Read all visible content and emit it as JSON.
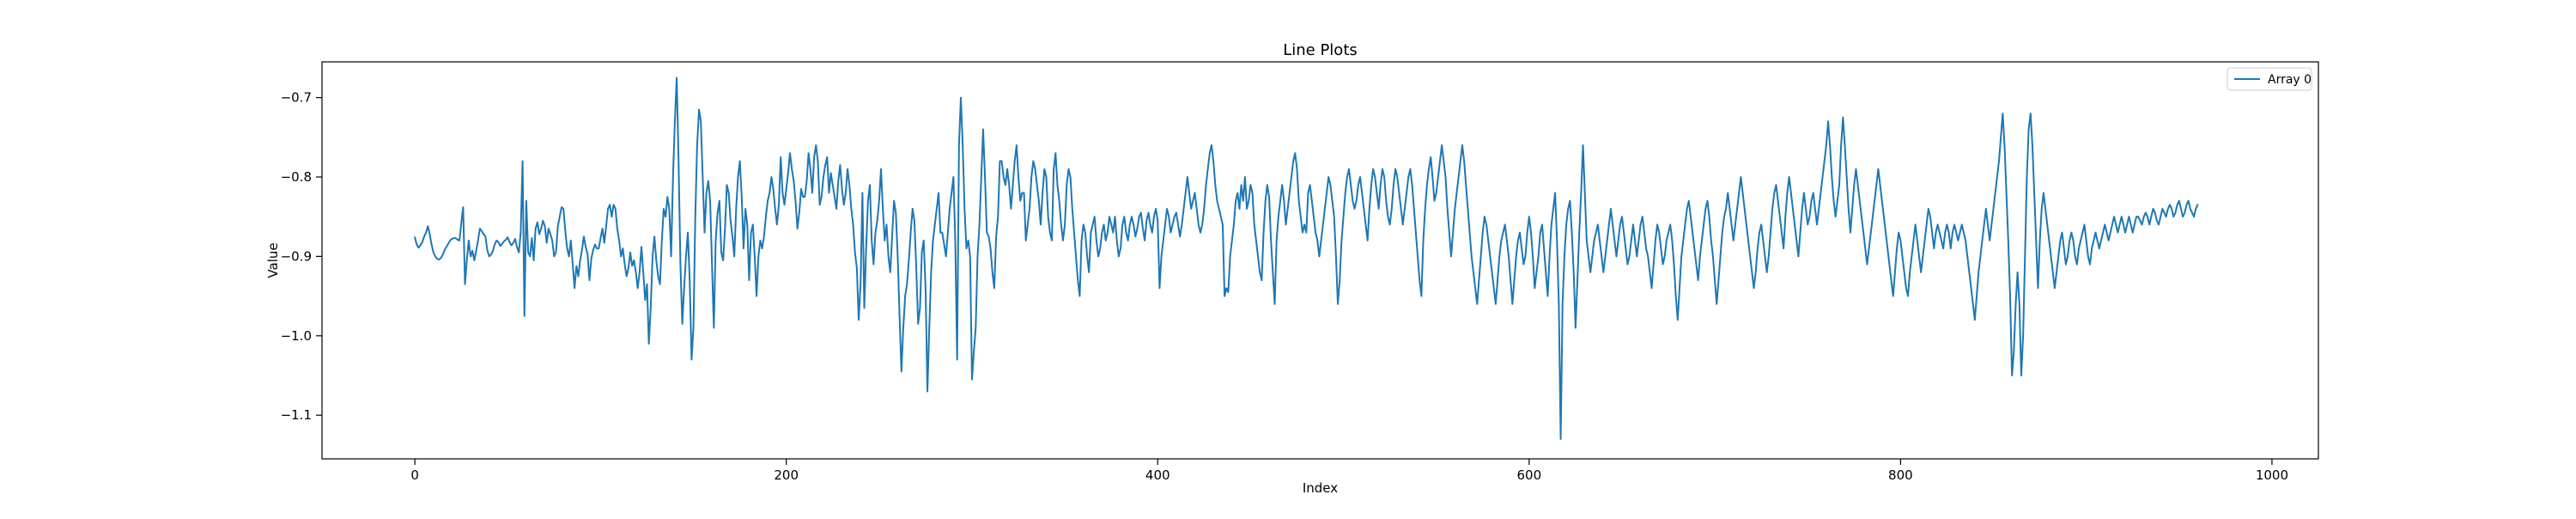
{
  "chart_data": {
    "type": "line",
    "title": "Line Plots",
    "xlabel": "Index",
    "ylabel": "Value",
    "xlim": [
      -50,
      1025
    ],
    "ylim": [
      -1.155,
      -0.655
    ],
    "x_ticks": [
      0,
      200,
      400,
      600,
      800,
      1000
    ],
    "x_tick_labels": [
      "0",
      "200",
      "400",
      "600",
      "800",
      "1000"
    ],
    "y_ticks": [
      -1.1,
      -1.0,
      -0.9,
      -0.8,
      -0.7
    ],
    "y_tick_labels": [
      "−1.1",
      "−1.0",
      "−0.9",
      "−0.8",
      "−0.7"
    ],
    "grid": false,
    "legend_position": "top-right",
    "series_color": "#1f77b4",
    "series": [
      {
        "name": "Array 0",
        "x_start": 0,
        "x_step": 1,
        "values": [
          -0.876,
          -0.885,
          -0.889,
          -0.886,
          -0.882,
          -0.875,
          -0.87,
          -0.862,
          -0.872,
          -0.885,
          -0.895,
          -0.9,
          -0.903,
          -0.904,
          -0.902,
          -0.898,
          -0.892,
          -0.888,
          -0.884,
          -0.88,
          -0.878,
          -0.877,
          -0.877,
          -0.879,
          -0.88,
          -0.858,
          -0.838,
          -0.935,
          -0.905,
          -0.88,
          -0.9,
          -0.893,
          -0.905,
          -0.893,
          -0.88,
          -0.865,
          -0.868,
          -0.872,
          -0.875,
          -0.892,
          -0.9,
          -0.898,
          -0.893,
          -0.885,
          -0.88,
          -0.882,
          -0.887,
          -0.884,
          -0.881,
          -0.879,
          -0.876,
          -0.882,
          -0.886,
          -0.883,
          -0.878,
          -0.888,
          -0.895,
          -0.87,
          -0.78,
          -0.975,
          -0.83,
          -0.895,
          -0.9,
          -0.877,
          -0.905,
          -0.865,
          -0.857,
          -0.872,
          -0.865,
          -0.855,
          -0.862,
          -0.883,
          -0.865,
          -0.872,
          -0.88,
          -0.9,
          -0.895,
          -0.862,
          -0.85,
          -0.838,
          -0.84,
          -0.868,
          -0.89,
          -0.9,
          -0.88,
          -0.91,
          -0.94,
          -0.912,
          -0.925,
          -0.905,
          -0.892,
          -0.875,
          -0.888,
          -0.897,
          -0.93,
          -0.903,
          -0.892,
          -0.885,
          -0.89,
          -0.89,
          -0.877,
          -0.865,
          -0.883,
          -0.862,
          -0.84,
          -0.835,
          -0.85,
          -0.835,
          -0.84,
          -0.865,
          -0.88,
          -0.9,
          -0.89,
          -0.91,
          -0.925,
          -0.915,
          -0.895,
          -0.912,
          -0.905,
          -0.92,
          -0.94,
          -0.92,
          -0.888,
          -0.92,
          -0.955,
          -0.935,
          -1.01,
          -0.965,
          -0.9,
          -0.875,
          -0.905,
          -0.925,
          -0.935,
          -0.88,
          -0.84,
          -0.85,
          -0.825,
          -0.84,
          -0.9,
          -0.8,
          -0.73,
          -0.675,
          -0.78,
          -0.91,
          -0.985,
          -0.94,
          -0.9,
          -0.87,
          -0.93,
          -1.03,
          -0.99,
          -0.85,
          -0.76,
          -0.715,
          -0.73,
          -0.8,
          -0.87,
          -0.82,
          -0.805,
          -0.83,
          -0.91,
          -0.99,
          -0.88,
          -0.845,
          -0.83,
          -0.895,
          -0.905,
          -0.865,
          -0.81,
          -0.82,
          -0.855,
          -0.875,
          -0.9,
          -0.84,
          -0.8,
          -0.78,
          -0.825,
          -0.89,
          -0.84,
          -0.86,
          -0.93,
          -0.87,
          -0.86,
          -0.9,
          -0.95,
          -0.9,
          -0.88,
          -0.89,
          -0.875,
          -0.85,
          -0.83,
          -0.82,
          -0.8,
          -0.815,
          -0.84,
          -0.86,
          -0.835,
          -0.775,
          -0.82,
          -0.835,
          -0.815,
          -0.795,
          -0.77,
          -0.79,
          -0.805,
          -0.83,
          -0.865,
          -0.845,
          -0.815,
          -0.825,
          -0.825,
          -0.805,
          -0.77,
          -0.79,
          -0.82,
          -0.775,
          -0.76,
          -0.78,
          -0.835,
          -0.825,
          -0.8,
          -0.785,
          -0.775,
          -0.82,
          -0.795,
          -0.81,
          -0.825,
          -0.84,
          -0.805,
          -0.785,
          -0.815,
          -0.835,
          -0.82,
          -0.79,
          -0.81,
          -0.84,
          -0.86,
          -0.895,
          -0.915,
          -0.98,
          -0.935,
          -0.82,
          -0.965,
          -0.89,
          -0.83,
          -0.81,
          -0.88,
          -0.91,
          -0.87,
          -0.855,
          -0.83,
          -0.79,
          -0.84,
          -0.88,
          -0.86,
          -0.9,
          -0.92,
          -0.875,
          -0.83,
          -0.845,
          -0.9,
          -0.975,
          -1.045,
          -0.99,
          -0.95,
          -0.935,
          -0.905,
          -0.87,
          -0.84,
          -0.855,
          -0.915,
          -0.985,
          -0.965,
          -0.895,
          -0.88,
          -0.94,
          -1.07,
          -0.99,
          -0.92,
          -0.88,
          -0.86,
          -0.84,
          -0.82,
          -0.87,
          -0.87,
          -0.885,
          -0.9,
          -0.87,
          -0.84,
          -0.82,
          -0.8,
          -0.88,
          -1.03,
          -0.76,
          -0.7,
          -0.76,
          -0.84,
          -0.89,
          -0.88,
          -0.9,
          -1.055,
          -1.02,
          -0.99,
          -0.9,
          -0.86,
          -0.8,
          -0.74,
          -0.8,
          -0.87,
          -0.875,
          -0.89,
          -0.92,
          -0.94,
          -0.875,
          -0.85,
          -0.78,
          -0.78,
          -0.8,
          -0.81,
          -0.79,
          -0.81,
          -0.84,
          -0.81,
          -0.78,
          -0.76,
          -0.8,
          -0.83,
          -0.82,
          -0.82,
          -0.88,
          -0.86,
          -0.84,
          -0.8,
          -0.78,
          -0.79,
          -0.81,
          -0.83,
          -0.86,
          -0.82,
          -0.79,
          -0.8,
          -0.85,
          -0.87,
          -0.88,
          -0.79,
          -0.77,
          -0.81,
          -0.83,
          -0.86,
          -0.88,
          -0.86,
          -0.81,
          -0.79,
          -0.8,
          -0.84,
          -0.87,
          -0.9,
          -0.93,
          -0.95,
          -0.88,
          -0.86,
          -0.87,
          -0.9,
          -0.92,
          -0.87,
          -0.86,
          -0.85,
          -0.88,
          -0.9,
          -0.89,
          -0.87,
          -0.86,
          -0.88,
          -0.87,
          -0.85,
          -0.86,
          -0.87,
          -0.85,
          -0.88,
          -0.9,
          -0.89,
          -0.86,
          -0.85,
          -0.87,
          -0.88,
          -0.86,
          -0.85,
          -0.86,
          -0.875,
          -0.865,
          -0.85,
          -0.845,
          -0.865,
          -0.88,
          -0.855,
          -0.845,
          -0.86,
          -0.87,
          -0.85,
          -0.84,
          -0.855,
          -0.94,
          -0.9,
          -0.88,
          -0.86,
          -0.84,
          -0.85,
          -0.87,
          -0.86,
          -0.85,
          -0.845,
          -0.86,
          -0.875,
          -0.86,
          -0.84,
          -0.82,
          -0.8,
          -0.82,
          -0.84,
          -0.83,
          -0.82,
          -0.84,
          -0.86,
          -0.87,
          -0.86,
          -0.84,
          -0.81,
          -0.79,
          -0.77,
          -0.76,
          -0.78,
          -0.81,
          -0.83,
          -0.84,
          -0.85,
          -0.86,
          -0.95,
          -0.94,
          -0.945,
          -0.9,
          -0.88,
          -0.86,
          -0.83,
          -0.82,
          -0.84,
          -0.81,
          -0.83,
          -0.8,
          -0.84,
          -0.83,
          -0.81,
          -0.82,
          -0.86,
          -0.88,
          -0.9,
          -0.92,
          -0.93,
          -0.87,
          -0.83,
          -0.81,
          -0.825,
          -0.88,
          -0.92,
          -0.96,
          -0.88,
          -0.85,
          -0.83,
          -0.81,
          -0.83,
          -0.86,
          -0.84,
          -0.82,
          -0.8,
          -0.78,
          -0.77,
          -0.79,
          -0.83,
          -0.85,
          -0.87,
          -0.86,
          -0.87,
          -0.82,
          -0.81,
          -0.83,
          -0.85,
          -0.87,
          -0.88,
          -0.9,
          -0.88,
          -0.86,
          -0.84,
          -0.82,
          -0.8,
          -0.81,
          -0.83,
          -0.85,
          -0.9,
          -0.96,
          -0.93,
          -0.88,
          -0.85,
          -0.82,
          -0.8,
          -0.79,
          -0.81,
          -0.83,
          -0.84,
          -0.83,
          -0.81,
          -0.8,
          -0.82,
          -0.84,
          -0.86,
          -0.88,
          -0.84,
          -0.81,
          -0.79,
          -0.8,
          -0.82,
          -0.84,
          -0.81,
          -0.79,
          -0.8,
          -0.83,
          -0.85,
          -0.86,
          -0.84,
          -0.81,
          -0.79,
          -0.8,
          -0.82,
          -0.84,
          -0.86,
          -0.84,
          -0.82,
          -0.8,
          -0.79,
          -0.81,
          -0.84,
          -0.87,
          -0.9,
          -0.93,
          -0.95,
          -0.88,
          -0.84,
          -0.81,
          -0.79,
          -0.775,
          -0.8,
          -0.83,
          -0.82,
          -0.8,
          -0.78,
          -0.76,
          -0.78,
          -0.8,
          -0.84,
          -0.87,
          -0.9,
          -0.87,
          -0.84,
          -0.82,
          -0.8,
          -0.78,
          -0.76,
          -0.78,
          -0.81,
          -0.84,
          -0.87,
          -0.9,
          -0.92,
          -0.94,
          -0.96,
          -0.93,
          -0.9,
          -0.87,
          -0.85,
          -0.86,
          -0.88,
          -0.9,
          -0.92,
          -0.94,
          -0.96,
          -0.93,
          -0.9,
          -0.88,
          -0.87,
          -0.86,
          -0.88,
          -0.9,
          -0.93,
          -0.96,
          -0.93,
          -0.9,
          -0.88,
          -0.87,
          -0.89,
          -0.91,
          -0.9,
          -0.87,
          -0.85,
          -0.87,
          -0.9,
          -0.94,
          -0.92,
          -0.9,
          -0.87,
          -0.86,
          -0.89,
          -0.92,
          -0.95,
          -0.9,
          -0.86,
          -0.84,
          -0.82,
          -0.88,
          -0.96,
          -1.13,
          -0.96,
          -0.9,
          -0.86,
          -0.84,
          -0.83,
          -0.87,
          -0.92,
          -0.99,
          -0.93,
          -0.87,
          -0.82,
          -0.76,
          -0.82,
          -0.88,
          -0.9,
          -0.92,
          -0.9,
          -0.88,
          -0.87,
          -0.86,
          -0.88,
          -0.9,
          -0.92,
          -0.9,
          -0.88,
          -0.86,
          -0.84,
          -0.86,
          -0.88,
          -0.9,
          -0.88,
          -0.86,
          -0.85,
          -0.87,
          -0.89,
          -0.91,
          -0.9,
          -0.88,
          -0.86,
          -0.88,
          -0.9,
          -0.88,
          -0.86,
          -0.85,
          -0.87,
          -0.89,
          -0.9,
          -0.92,
          -0.94,
          -0.91,
          -0.88,
          -0.86,
          -0.87,
          -0.89,
          -0.91,
          -0.9,
          -0.88,
          -0.87,
          -0.86,
          -0.88,
          -0.91,
          -0.95,
          -0.98,
          -0.94,
          -0.9,
          -0.88,
          -0.86,
          -0.84,
          -0.83,
          -0.85,
          -0.87,
          -0.89,
          -0.91,
          -0.93,
          -0.9,
          -0.88,
          -0.86,
          -0.84,
          -0.83,
          -0.85,
          -0.88,
          -0.9,
          -0.93,
          -0.96,
          -0.93,
          -0.9,
          -0.87,
          -0.85,
          -0.84,
          -0.82,
          -0.84,
          -0.86,
          -0.88,
          -0.86,
          -0.84,
          -0.82,
          -0.8,
          -0.82,
          -0.84,
          -0.86,
          -0.88,
          -0.9,
          -0.92,
          -0.94,
          -0.92,
          -0.89,
          -0.87,
          -0.86,
          -0.88,
          -0.9,
          -0.92,
          -0.9,
          -0.87,
          -0.84,
          -0.82,
          -0.81,
          -0.83,
          -0.85,
          -0.87,
          -0.89,
          -0.85,
          -0.82,
          -0.8,
          -0.82,
          -0.84,
          -0.86,
          -0.88,
          -0.9,
          -0.87,
          -0.84,
          -0.82,
          -0.84,
          -0.86,
          -0.85,
          -0.83,
          -0.82,
          -0.84,
          -0.86,
          -0.84,
          -0.82,
          -0.8,
          -0.78,
          -0.76,
          -0.73,
          -0.76,
          -0.8,
          -0.83,
          -0.85,
          -0.83,
          -0.81,
          -0.76,
          -0.725,
          -0.76,
          -0.8,
          -0.84,
          -0.87,
          -0.84,
          -0.81,
          -0.79,
          -0.81,
          -0.83,
          -0.85,
          -0.87,
          -0.89,
          -0.91,
          -0.89,
          -0.87,
          -0.85,
          -0.83,
          -0.81,
          -0.79,
          -0.81,
          -0.83,
          -0.85,
          -0.87,
          -0.89,
          -0.91,
          -0.93,
          -0.95,
          -0.92,
          -0.89,
          -0.87,
          -0.88,
          -0.9,
          -0.92,
          -0.94,
          -0.95,
          -0.92,
          -0.9,
          -0.88,
          -0.86,
          -0.88,
          -0.9,
          -0.92,
          -0.9,
          -0.88,
          -0.86,
          -0.84,
          -0.85,
          -0.87,
          -0.89,
          -0.87,
          -0.86,
          -0.87,
          -0.88,
          -0.89,
          -0.87,
          -0.86,
          -0.87,
          -0.89,
          -0.87,
          -0.86,
          -0.87,
          -0.88,
          -0.87,
          -0.86,
          -0.87,
          -0.88,
          -0.9,
          -0.92,
          -0.94,
          -0.96,
          -0.98,
          -0.95,
          -0.92,
          -0.9,
          -0.88,
          -0.86,
          -0.84,
          -0.86,
          -0.88,
          -0.86,
          -0.84,
          -0.82,
          -0.8,
          -0.78,
          -0.75,
          -0.72,
          -0.76,
          -0.82,
          -0.88,
          -0.95,
          -1.05,
          -1.02,
          -0.96,
          -0.92,
          -0.96,
          -1.05,
          -1.0,
          -0.9,
          -0.8,
          -0.74,
          -0.72,
          -0.76,
          -0.82,
          -0.88,
          -0.94,
          -0.88,
          -0.84,
          -0.82,
          -0.84,
          -0.86,
          -0.88,
          -0.9,
          -0.92,
          -0.94,
          -0.92,
          -0.9,
          -0.88,
          -0.87,
          -0.89,
          -0.91,
          -0.9,
          -0.88,
          -0.87,
          -0.88,
          -0.9,
          -0.91,
          -0.89,
          -0.88,
          -0.87,
          -0.86,
          -0.88,
          -0.9,
          -0.91,
          -0.89,
          -0.88,
          -0.87,
          -0.88,
          -0.89,
          -0.88,
          -0.87,
          -0.86,
          -0.87,
          -0.88,
          -0.87,
          -0.86,
          -0.85,
          -0.86,
          -0.87,
          -0.86,
          -0.85,
          -0.86,
          -0.87,
          -0.86,
          -0.85,
          -0.86,
          -0.87,
          -0.86,
          -0.85,
          -0.85,
          -0.855,
          -0.86,
          -0.85,
          -0.845,
          -0.85,
          -0.86,
          -0.85,
          -0.84,
          -0.845,
          -0.855,
          -0.86,
          -0.85,
          -0.84,
          -0.845,
          -0.85,
          -0.84,
          -0.835,
          -0.84,
          -0.85,
          -0.845,
          -0.835,
          -0.83,
          -0.84,
          -0.85,
          -0.845,
          -0.835,
          -0.83,
          -0.84,
          -0.845,
          -0.85,
          -0.84,
          -0.835
        ]
      }
    ]
  }
}
